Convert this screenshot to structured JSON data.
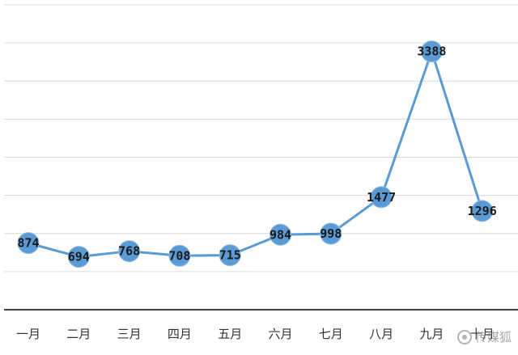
{
  "chart_data": {
    "type": "line",
    "categories": [
      "一月",
      "二月",
      "三月",
      "四月",
      "五月",
      "六月",
      "七月",
      "八月",
      "九月",
      "十月"
    ],
    "series": [
      {
        "values": [
          874,
          694,
          768,
          708,
          715,
          984,
          998,
          1477,
          3388,
          1296
        ]
      }
    ],
    "title": "",
    "xlabel": "",
    "ylabel": "",
    "ylim": [
      0,
      4000
    ],
    "grid": true,
    "legend": "none",
    "data_labels": true,
    "colors": {
      "series": "#5b9bd5",
      "grid": "#d9d9d9",
      "axis": "#404040"
    }
  },
  "watermark": {
    "text": "传媒狐",
    "icon": "wechat-icon"
  }
}
